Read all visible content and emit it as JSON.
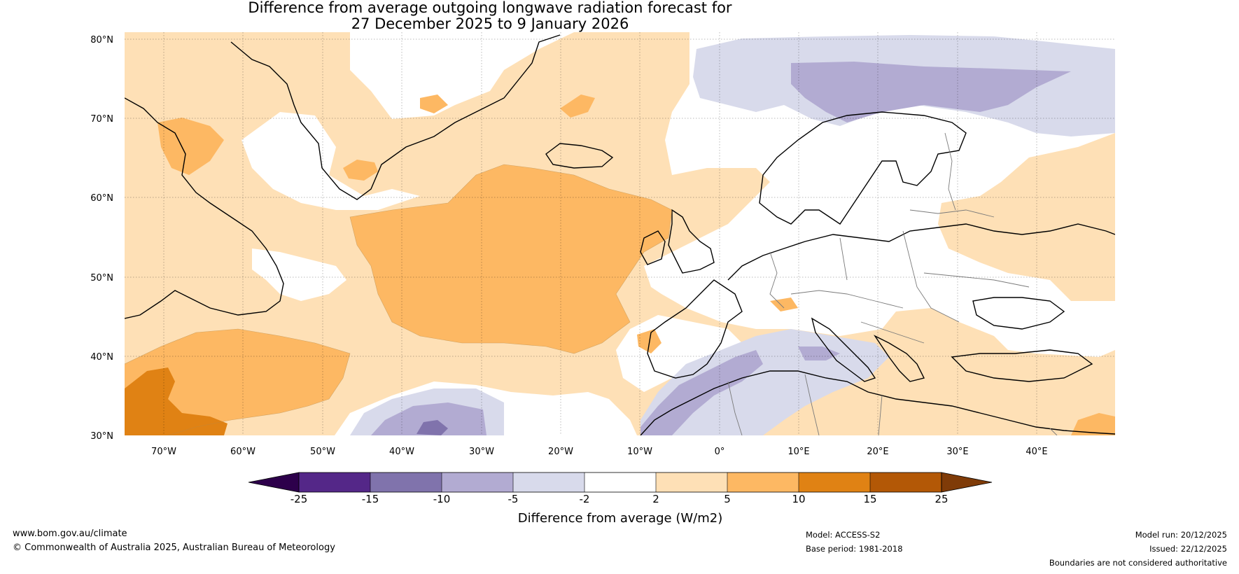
{
  "title": {
    "line1": "Difference from average outgoing longwave radiation forecast for",
    "line2": "27 December 2025 to 9 January 2026"
  },
  "map": {
    "lat_labels": [
      "80°N",
      "70°N",
      "60°N",
      "50°N",
      "40°N",
      "30°N"
    ],
    "lon_labels": [
      "70°W",
      "60°W",
      "50°W",
      "40°W",
      "30°W",
      "20°W",
      "10°W",
      "0°",
      "10°E",
      "20°E",
      "30°E",
      "40°E"
    ]
  },
  "colorbar": {
    "ticks": [
      "-25",
      "-15",
      "-10",
      "-5",
      "-2",
      "2",
      "5",
      "10",
      "15",
      "25"
    ],
    "label": "Difference from average (W/m2)",
    "colors": {
      "below": "#2d004b",
      "c1": "#542788",
      "c2": "#8073ac",
      "c3": "#b2abd2",
      "c4": "#d8daeb",
      "c5": "#ffffff",
      "c6": "#fee0b6",
      "c7": "#fdb863",
      "c8": "#e08214",
      "c9": "#b35806",
      "above": "#7f3b08"
    }
  },
  "footer": {
    "website": "www.bom.gov.au/climate",
    "copyright": "© Commonwealth of Australia 2025, Australian Bureau of Meteorology",
    "model": "Model: ACCESS-S2",
    "base_period": "Base period: 1981-2018",
    "model_run": "Model run: 20/12/2025",
    "issued": "Issued: 22/12/2025",
    "disclaimer": "Boundaries are not considered authoritative"
  }
}
